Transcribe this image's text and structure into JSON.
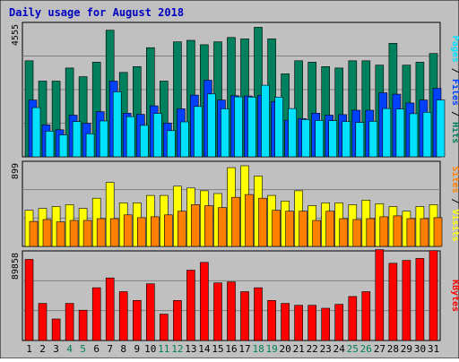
{
  "colors": {
    "background": "#c0c0c0",
    "border": "#000000",
    "title": "#0000c0",
    "hits": "#00805c",
    "files": "#0040ff",
    "pages": "#00e0ff",
    "visits": "#ffff00",
    "sites": "#ff8000",
    "kbytes": "#ff0000",
    "weekend_label": "#00805c",
    "weekday_label": "#000000"
  },
  "chart_data": {
    "title": "Daily usage for August 2018",
    "type": "bar",
    "x": [
      "1",
      "2",
      "3",
      "4",
      "5",
      "6",
      "7",
      "8",
      "9",
      "10",
      "11",
      "12",
      "13",
      "14",
      "15",
      "16",
      "17",
      "18",
      "19",
      "20",
      "21",
      "22",
      "23",
      "24",
      "25",
      "26",
      "27",
      "28",
      "29",
      "30",
      "31"
    ],
    "weekend_days": [
      "4",
      "5",
      "11",
      "12",
      "18",
      "19",
      "25",
      "26"
    ],
    "panels": [
      {
        "ymax_label": "4555",
        "ylim": [
          0,
          4555
        ],
        "axis_labels": [
          {
            "text": "Pages",
            "color_key": "pages"
          },
          {
            "text": "Files",
            "color_key": "files"
          },
          {
            "text": "Hits",
            "color_key": "hits"
          }
        ],
        "separator": " / ",
        "series": [
          {
            "name": "Hits",
            "color_key": "hits",
            "values": [
              3300,
              2600,
              2600,
              3050,
              2750,
              3250,
              4350,
              2900,
              3100,
              3750,
              2600,
              3950,
              4000,
              3850,
              3950,
              4100,
              4050,
              4450,
              4050,
              2850,
              3300,
              3250,
              3100,
              3050,
              3300,
              3300,
              3150,
              3900,
              3150,
              3250,
              3550
            ]
          },
          {
            "name": "Files",
            "color_key": "files",
            "values": [
              1950,
              1100,
              930,
              1430,
              1150,
              1550,
              2600,
              1500,
              1460,
              1750,
              1160,
              1650,
              2120,
              2630,
              1950,
              2100,
              2090,
              2110,
              1900,
              1260,
              1310,
              1500,
              1430,
              1450,
              1600,
              1600,
              2200,
              2150,
              1850,
              1950,
              2350
            ]
          },
          {
            "name": "Pages",
            "color_key": "pages",
            "values": [
              1690,
              880,
              750,
              1210,
              790,
              1230,
              2230,
              1380,
              1080,
              1490,
              900,
              1200,
              1730,
              2160,
              1650,
              2060,
              2050,
              2460,
              2050,
              1660,
              1280,
              1250,
              1240,
              1210,
              1180,
              1220,
              1660,
              1640,
              1480,
              1530,
              1950
            ]
          }
        ]
      },
      {
        "ymax_label": "899",
        "ylim": [
          0,
          899
        ],
        "axis_labels": [
          {
            "text": "Sites",
            "color_key": "sites"
          },
          {
            "text": "Visits",
            "color_key": "visits"
          }
        ],
        "separator": " / ",
        "series": [
          {
            "name": "Visits",
            "color_key": "visits",
            "values": [
              390,
              410,
              430,
              450,
              410,
              520,
              690,
              470,
              470,
              550,
              550,
              650,
              630,
              600,
              570,
              850,
              870,
              760,
              550,
              490,
              600,
              440,
              470,
              470,
              450,
              500,
              460,
              430,
              380,
              430,
              450
            ]
          },
          {
            "name": "Sites",
            "color_key": "sites",
            "values": [
              270,
              290,
              265,
              280,
              280,
              300,
              300,
              340,
              310,
              320,
              340,
              380,
              450,
              440,
              420,
              530,
              560,
              520,
              390,
              380,
              380,
              280,
              380,
              300,
              290,
              300,
              320,
              330,
              300,
              300,
              310
            ]
          }
        ]
      },
      {
        "ymax_label": "89858",
        "ylim": [
          0,
          89858
        ],
        "axis_labels": [
          {
            "text": "KBytes",
            "color_key": "kbytes"
          }
        ],
        "separator": "",
        "series": [
          {
            "name": "KBytes",
            "color_key": "kbytes",
            "values": [
              83000,
              38000,
              22000,
              38000,
              31000,
              54000,
              64000,
              50000,
              41000,
              58000,
              27000,
              41000,
              72000,
              80000,
              59000,
              60000,
              50000,
              54000,
              41000,
              38000,
              36000,
              36000,
              33000,
              37000,
              45000,
              50000,
              93000,
              79000,
              82000,
              84000,
              92000
            ]
          }
        ]
      }
    ]
  }
}
